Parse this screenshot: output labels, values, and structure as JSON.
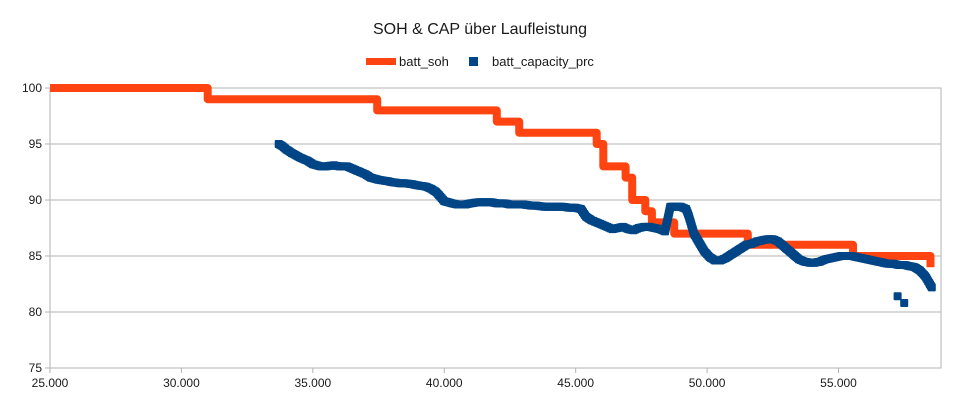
{
  "chart_data": {
    "type": "line",
    "title": "SOH & CAP über Laufleistung",
    "xlabel": "",
    "ylabel": "",
    "xlim": [
      25000,
      58900
    ],
    "ylim": [
      75,
      100
    ],
    "x_ticks": [
      25000,
      30000,
      35000,
      40000,
      45000,
      50000,
      55000
    ],
    "x_tick_labels": [
      "25.000",
      "30.000",
      "35.000",
      "40.000",
      "45.000",
      "50.000",
      "55.000"
    ],
    "y_ticks": [
      75,
      80,
      85,
      90,
      95,
      100
    ],
    "y_tick_labels": [
      "75",
      "80",
      "85",
      "90",
      "95",
      "100"
    ],
    "grid": "horizontal",
    "legend_position": "top-center",
    "series": [
      {
        "name": "batt_soh",
        "kind": "step-line",
        "color": "#ff4411",
        "x": [
          25000,
          31000,
          31000,
          37450,
          37450,
          42000,
          42000,
          42850,
          42850,
          45800,
          45800,
          46050,
          46050,
          46900,
          46900,
          47150,
          47150,
          47650,
          47650,
          47900,
          47900,
          48750,
          48750,
          51550,
          51550,
          55550,
          55550,
          58500,
          58500
        ],
        "y": [
          100,
          100,
          99,
          99,
          98,
          98,
          97,
          97,
          96,
          96,
          95,
          95,
          93,
          93,
          92,
          92,
          90,
          90,
          89,
          89,
          88,
          88,
          87,
          87,
          86,
          86,
          85,
          85,
          84
        ]
      },
      {
        "name": "batt_capacity_prc",
        "kind": "scatter",
        "color": "#004586",
        "x": [
          33700,
          33850,
          34000,
          34200,
          34500,
          34800,
          35000,
          35300,
          35500,
          35800,
          36000,
          36300,
          36500,
          36800,
          37000,
          37200,
          37500,
          37800,
          38000,
          38300,
          38500,
          38800,
          39000,
          39300,
          39500,
          39700,
          40000,
          40300,
          40500,
          40800,
          41000,
          41300,
          41500,
          41800,
          42000,
          42300,
          42500,
          42800,
          43000,
          43300,
          43500,
          43800,
          44000,
          44300,
          44500,
          44800,
          45000,
          45200,
          45400,
          45600,
          45800,
          46000,
          46200,
          46400,
          46600,
          46800,
          47000,
          47200,
          47400,
          47600,
          47800,
          48000,
          48200,
          48400,
          48600,
          48800,
          49000,
          49200,
          49300,
          49500,
          49700,
          49900,
          50100,
          50300,
          50500,
          50700,
          50900,
          51100,
          51300,
          51500,
          51700,
          51900,
          52100,
          52300,
          52500,
          52700,
          52900,
          53100,
          53300,
          53500,
          53700,
          53900,
          54100,
          54300,
          54500,
          54700,
          54900,
          55100,
          55300,
          55500,
          55700,
          55900,
          56100,
          56300,
          56500,
          56700,
          56900,
          57100,
          57300,
          57500,
          57700,
          57900,
          58100,
          58300,
          58450,
          58550,
          57250,
          57500
        ],
        "y": [
          95.0,
          94.8,
          94.5,
          94.2,
          93.8,
          93.5,
          93.2,
          93.0,
          93.0,
          93.1,
          93.0,
          93.0,
          92.8,
          92.5,
          92.3,
          92.0,
          91.8,
          91.7,
          91.6,
          91.5,
          91.5,
          91.4,
          91.3,
          91.2,
          91.0,
          90.7,
          89.9,
          89.7,
          89.6,
          89.6,
          89.7,
          89.8,
          89.8,
          89.8,
          89.7,
          89.7,
          89.6,
          89.6,
          89.6,
          89.5,
          89.5,
          89.4,
          89.4,
          89.4,
          89.4,
          89.3,
          89.3,
          89.2,
          88.5,
          88.2,
          88.0,
          87.8,
          87.6,
          87.4,
          87.5,
          87.6,
          87.4,
          87.3,
          87.5,
          87.6,
          87.6,
          87.5,
          87.4,
          87.2,
          89.4,
          89.4,
          89.4,
          89.2,
          88.6,
          87.0,
          86.2,
          85.4,
          84.9,
          84.6,
          84.6,
          84.8,
          85.1,
          85.4,
          85.7,
          86.0,
          86.1,
          86.3,
          86.4,
          86.5,
          86.5,
          86.3,
          85.9,
          85.5,
          85.1,
          84.7,
          84.5,
          84.4,
          84.4,
          84.5,
          84.7,
          84.8,
          84.9,
          85.0,
          85.0,
          85.0,
          84.9,
          84.8,
          84.7,
          84.6,
          84.5,
          84.4,
          84.3,
          84.3,
          84.2,
          84.2,
          84.1,
          84.0,
          83.7,
          83.2,
          82.6,
          82.2,
          81.4,
          80.8
        ]
      }
    ]
  }
}
